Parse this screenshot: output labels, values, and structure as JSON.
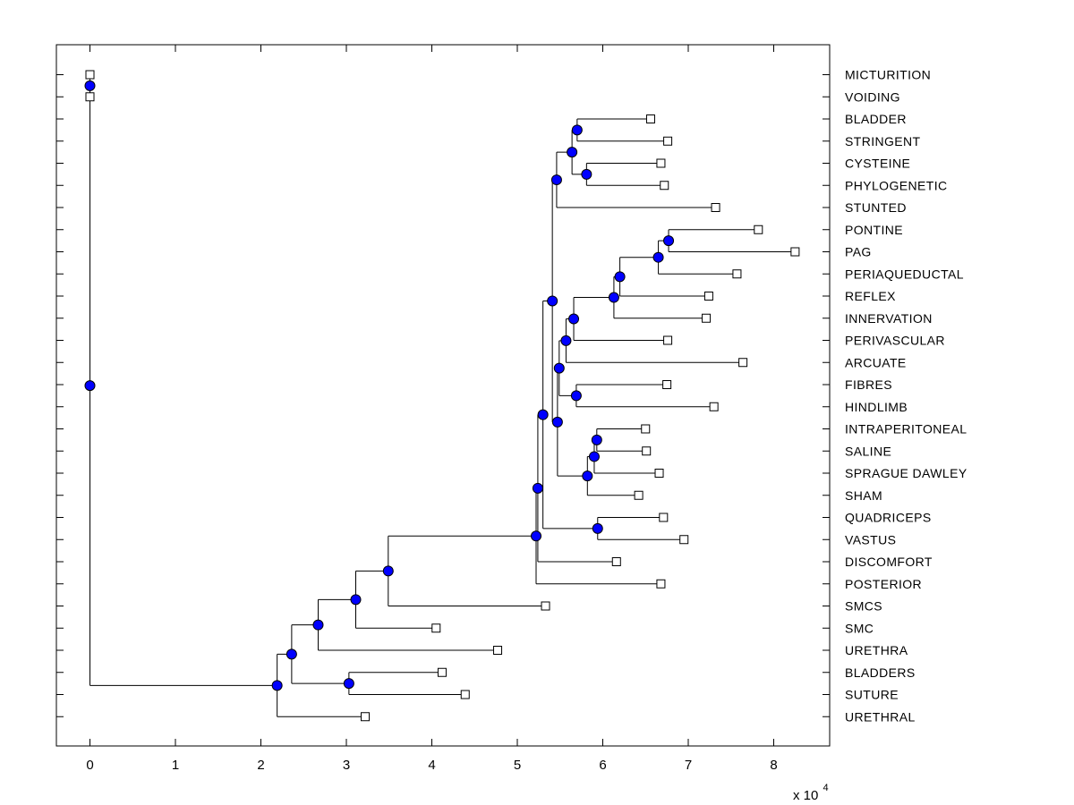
{
  "figure": {
    "background": "#ffffff",
    "title": ""
  },
  "colors": {
    "branch_line": "#000000",
    "branch_node_fill": "#0000ff",
    "branch_node_edge": "#000000",
    "leaf_marker_fill": "#ffffff",
    "leaf_marker_edge": "#000000",
    "axis_color": "#000000",
    "label_color": "#000000"
  },
  "chart_data": {
    "type": "dendrogram",
    "subtype": "phylogenetic-tree",
    "orientation": "root-left",
    "grid": false,
    "legend": null,
    "x_axis": {
      "exponent_prefix": "x 10",
      "exponent": "4",
      "range": [
        -3900,
        86500
      ],
      "ticks": [
        {
          "value": 0,
          "label": "0"
        },
        {
          "value": 10000,
          "label": "1"
        },
        {
          "value": 20000,
          "label": "2"
        },
        {
          "value": 30000,
          "label": "3"
        },
        {
          "value": 40000,
          "label": "4"
        },
        {
          "value": 50000,
          "label": "5"
        },
        {
          "value": 60000,
          "label": "6"
        },
        {
          "value": 70000,
          "label": "7"
        },
        {
          "value": 80000,
          "label": "8"
        }
      ]
    },
    "leaf_labels": [
      "MICTURITION",
      "VOIDING",
      "BLADDER",
      "STRINGENT",
      "CYSTEINE",
      "PHYLOGENETIC",
      "STUNTED",
      "PONTINE",
      "PAG",
      "PERIAQUEDUCTAL",
      "REFLEX",
      "INNERVATION",
      "PERIVASCULAR",
      "ARCUATE",
      "FIBRES",
      "HINDLIMB",
      "INTRAPERITONEAL",
      "SALINE",
      "SPRAGUE DAWLEY",
      "SHAM",
      "QUADRICEPS",
      "VASTUS",
      "DISCOMFORT",
      "POSTERIOR",
      "SMCS",
      "SMC",
      "URETHRA",
      "BLADDERS",
      "SUTURE",
      "URETHRAL"
    ],
    "tree": {
      "dist": 0,
      "children": [
        {
          "dist": 0,
          "children": [
            {
              "label": "MICTURITION",
              "dist": 0
            },
            {
              "label": "VOIDING",
              "dist": 0
            }
          ]
        },
        {
          "dist": 21900,
          "children": [
            {
              "dist": 23600,
              "children": [
                {
                  "dist": 26700,
                  "children": [
                    {
                      "dist": 31100,
                      "children": [
                        {
                          "dist": 34900,
                          "children": [
                            {
                              "dist": 52200,
                              "children": [
                                {
                                  "dist": 52400,
                                  "children": [
                                    {
                                      "dist": 53000,
                                      "children": [
                                        {
                                          "dist": 54100,
                                          "children": [
                                            {
                                              "dist": 54600,
                                              "children": [
                                                {
                                                  "dist": 56400,
                                                  "children": [
                                                    {
                                                      "dist": 57000,
                                                      "children": [
                                                        {
                                                          "label": "BLADDER",
                                                          "dist": 65600
                                                        },
                                                        {
                                                          "label": "STRINGENT",
                                                          "dist": 67600
                                                        }
                                                      ]
                                                    },
                                                    {
                                                      "dist": 58100,
                                                      "children": [
                                                        {
                                                          "label": "CYSTEINE",
                                                          "dist": 66800
                                                        },
                                                        {
                                                          "label": "PHYLOGENETIC",
                                                          "dist": 67200
                                                        }
                                                      ]
                                                    }
                                                  ]
                                                },
                                                {
                                                  "label": "STUNTED",
                                                  "dist": 73200
                                                }
                                              ]
                                            },
                                            {
                                              "dist": 54700,
                                              "children": [
                                                {
                                                  "dist": 54900,
                                                  "children": [
                                                    {
                                                      "dist": 55700,
                                                      "children": [
                                                        {
                                                          "dist": 56600,
                                                          "children": [
                                                            {
                                                              "dist": 61300,
                                                              "children": [
                                                                {
                                                                  "dist": 62000,
                                                                  "children": [
                                                                    {
                                                                      "dist": 66500,
                                                                      "children": [
                                                                        {
                                                                          "dist": 67700,
                                                                          "children": [
                                                                            {
                                                                              "label": "PONTINE",
                                                                              "dist": 78200
                                                                            },
                                                                            {
                                                                              "label": "PAG",
                                                                              "dist": 82500
                                                                            }
                                                                          ]
                                                                        },
                                                                        {
                                                                          "label": "PERIAQUEDUCTAL",
                                                                          "dist": 75700
                                                                        }
                                                                      ]
                                                                    },
                                                                    {
                                                                      "label": "REFLEX",
                                                                      "dist": 72400
                                                                    }
                                                                  ]
                                                                },
                                                                {
                                                                  "label": "INNERVATION",
                                                                  "dist": 72100
                                                                }
                                                              ]
                                                            },
                                                            {
                                                              "label": "PERIVASCULAR",
                                                              "dist": 67600
                                                            }
                                                          ]
                                                        },
                                                        {
                                                          "label": "ARCUATE",
                                                          "dist": 76400
                                                        }
                                                      ]
                                                    },
                                                    {
                                                      "dist": 56900,
                                                      "children": [
                                                        {
                                                          "label": "FIBRES",
                                                          "dist": 67500
                                                        },
                                                        {
                                                          "label": "HINDLIMB",
                                                          "dist": 73000
                                                        }
                                                      ]
                                                    }
                                                  ]
                                                },
                                                {
                                                  "dist": 58200,
                                                  "children": [
                                                    {
                                                      "dist": 59000,
                                                      "children": [
                                                        {
                                                          "dist": 59300,
                                                          "children": [
                                                            {
                                                              "label": "INTRAPERITONEAL",
                                                              "dist": 65000
                                                            },
                                                            {
                                                              "label": "SALINE",
                                                              "dist": 65100
                                                            }
                                                          ]
                                                        },
                                                        {
                                                          "label": "SPRAGUE DAWLEY",
                                                          "dist": 66600
                                                        }
                                                      ]
                                                    },
                                                    {
                                                      "label": "SHAM",
                                                      "dist": 64200
                                                    }
                                                  ]
                                                }
                                              ]
                                            }
                                          ]
                                        },
                                        {
                                          "dist": 59400,
                                          "children": [
                                            {
                                              "label": "QUADRICEPS",
                                              "dist": 67100
                                            },
                                            {
                                              "label": "VASTUS",
                                              "dist": 69500
                                            }
                                          ]
                                        }
                                      ]
                                    },
                                    {
                                      "label": "DISCOMFORT",
                                      "dist": 61600
                                    }
                                  ]
                                },
                                {
                                  "label": "POSTERIOR",
                                  "dist": 66800
                                }
                              ]
                            },
                            {
                              "label": "SMCS",
                              "dist": 53300
                            }
                          ]
                        },
                        {
                          "label": "SMC",
                          "dist": 40500
                        }
                      ]
                    },
                    {
                      "label": "URETHRA",
                      "dist": 47700
                    }
                  ]
                },
                {
                  "dist": 30300,
                  "children": [
                    {
                      "label": "BLADDERS",
                      "dist": 41200
                    },
                    {
                      "label": "SUTURE",
                      "dist": 43900
                    }
                  ]
                }
              ]
            },
            {
              "label": "URETHRAL",
              "dist": 32200
            }
          ]
        }
      ]
    }
  }
}
